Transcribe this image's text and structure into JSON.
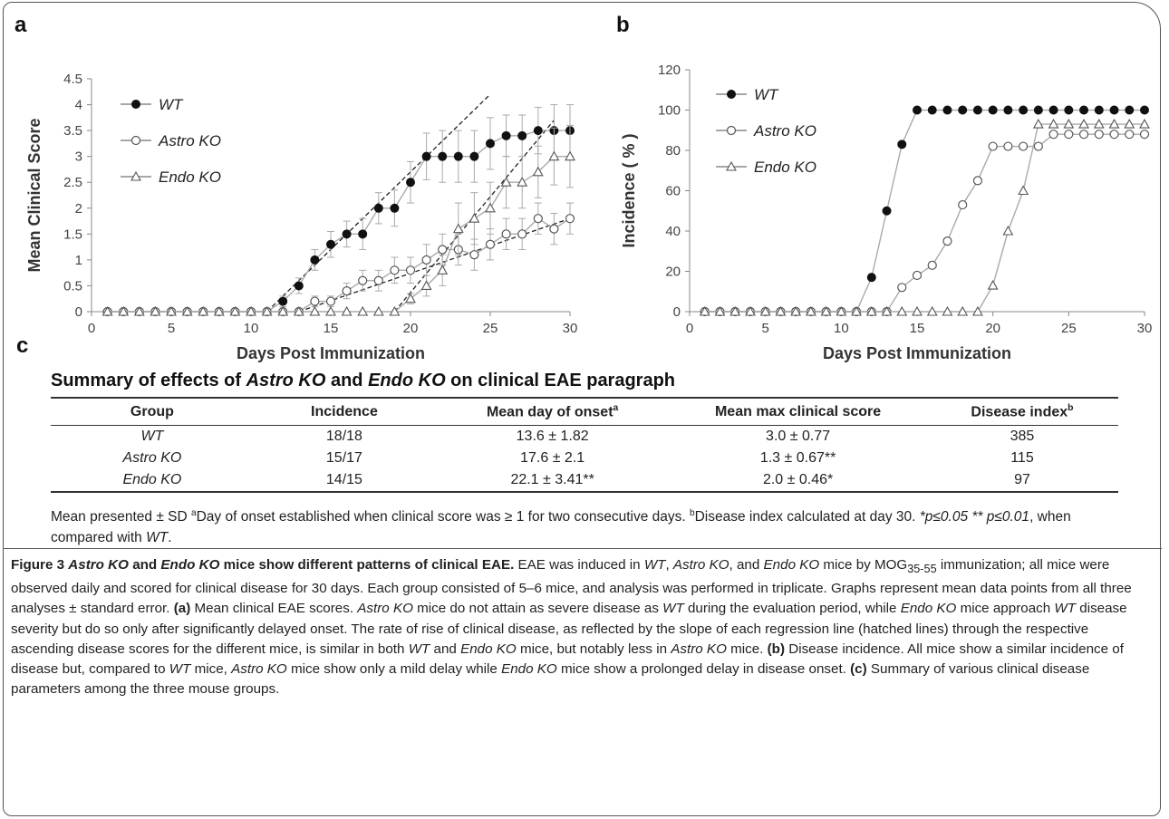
{
  "panel_labels": {
    "a": "a",
    "b": "b",
    "c": "c"
  },
  "legend": {
    "wt": "WT",
    "astro": "Astro KO",
    "endo": "Endo KO"
  },
  "chart_data": [
    {
      "type": "line",
      "panel": "a",
      "xlabel": "Days Post Immunization",
      "ylabel": "Mean Clinical Score",
      "xlim": [
        0,
        30
      ],
      "ylim": [
        0,
        4.5
      ],
      "xticks": [
        0,
        5,
        10,
        15,
        20,
        25,
        30
      ],
      "yticks": [
        0,
        0.5,
        1,
        1.5,
        2,
        2.5,
        3,
        3.5,
        4,
        4.5
      ],
      "ytick_labels": [
        "0",
        "0.5",
        "1",
        "1.5",
        "2",
        "2.5",
        "3",
        "3.5",
        "4",
        "4.5"
      ],
      "grid": false,
      "legend_position": "top-left",
      "series": [
        {
          "name": "WT",
          "marker": "filled-circle",
          "x": [
            1,
            2,
            3,
            4,
            5,
            6,
            7,
            8,
            9,
            10,
            11,
            12,
            13,
            14,
            15,
            16,
            17,
            18,
            19,
            20,
            21,
            22,
            23,
            24,
            25,
            26,
            27,
            28,
            29,
            30
          ],
          "y": [
            0,
            0,
            0,
            0,
            0,
            0,
            0,
            0,
            0,
            0,
            0,
            0.2,
            0.5,
            1.0,
            1.3,
            1.5,
            1.5,
            2.0,
            2.0,
            2.5,
            3.0,
            3.0,
            3.0,
            3.0,
            3.25,
            3.4,
            3.4,
            3.5,
            3.5,
            3.5
          ],
          "error": [
            0,
            0,
            0,
            0,
            0,
            0,
            0,
            0,
            0,
            0,
            0,
            0.1,
            0.15,
            0.2,
            0.25,
            0.25,
            0.3,
            0.3,
            0.35,
            0.4,
            0.45,
            0.5,
            0.5,
            0.5,
            0.5,
            0.4,
            0.4,
            0.45,
            0.5,
            0.5
          ]
        },
        {
          "name": "Astro KO",
          "marker": "open-circle",
          "x": [
            1,
            2,
            3,
            4,
            5,
            6,
            7,
            8,
            9,
            10,
            11,
            12,
            13,
            14,
            15,
            16,
            17,
            18,
            19,
            20,
            21,
            22,
            23,
            24,
            25,
            26,
            27,
            28,
            29,
            30
          ],
          "y": [
            0,
            0,
            0,
            0,
            0,
            0,
            0,
            0,
            0,
            0,
            0,
            0,
            0,
            0.2,
            0.2,
            0.4,
            0.6,
            0.6,
            0.8,
            0.8,
            1.0,
            1.2,
            1.2,
            1.1,
            1.3,
            1.5,
            1.5,
            1.8,
            1.6,
            1.8
          ],
          "error": [
            0,
            0,
            0,
            0,
            0,
            0,
            0,
            0,
            0,
            0,
            0,
            0,
            0,
            0.1,
            0.1,
            0.15,
            0.2,
            0.2,
            0.25,
            0.25,
            0.3,
            0.3,
            0.3,
            0.3,
            0.3,
            0.3,
            0.3,
            0.3,
            0.3,
            0.3
          ]
        },
        {
          "name": "Endo KO",
          "marker": "open-triangle",
          "x": [
            1,
            2,
            3,
            4,
            5,
            6,
            7,
            8,
            9,
            10,
            11,
            12,
            13,
            14,
            15,
            16,
            17,
            18,
            19,
            20,
            21,
            22,
            23,
            24,
            25,
            26,
            27,
            28,
            29,
            30
          ],
          "y": [
            0,
            0,
            0,
            0,
            0,
            0,
            0,
            0,
            0,
            0,
            0,
            0,
            0,
            0,
            0,
            0,
            0,
            0,
            0,
            0.25,
            0.5,
            0.8,
            1.6,
            1.8,
            2.0,
            2.5,
            2.5,
            2.7,
            3.0,
            3.0
          ],
          "error": [
            0,
            0,
            0,
            0,
            0,
            0,
            0,
            0,
            0,
            0,
            0,
            0,
            0,
            0,
            0,
            0,
            0,
            0,
            0,
            0.1,
            0.2,
            0.3,
            0.5,
            0.5,
            0.5,
            0.5,
            0.5,
            0.5,
            0.55,
            0.6
          ]
        }
      ],
      "regression_lines": [
        {
          "series": "WT",
          "x": [
            11,
            25
          ],
          "y": [
            0,
            4.2
          ]
        },
        {
          "series": "Astro KO",
          "x": [
            13,
            30
          ],
          "y": [
            0,
            1.8
          ]
        },
        {
          "series": "Endo KO",
          "x": [
            19,
            29
          ],
          "y": [
            0,
            3.7
          ]
        }
      ]
    },
    {
      "type": "line",
      "panel": "b",
      "xlabel": "Days Post Immunization",
      "ylabel": "Incidence ( % )",
      "xlim": [
        0,
        30
      ],
      "ylim": [
        0,
        120
      ],
      "xticks": [
        0,
        5,
        10,
        15,
        20,
        25,
        30
      ],
      "yticks": [
        0,
        20,
        40,
        60,
        80,
        100,
        120
      ],
      "ytick_labels": [
        "0",
        "20",
        "40",
        "60",
        "80",
        "100",
        "120"
      ],
      "grid": false,
      "legend_position": "top-left",
      "series": [
        {
          "name": "WT",
          "marker": "filled-circle",
          "x": [
            1,
            2,
            3,
            4,
            5,
            6,
            7,
            8,
            9,
            10,
            11,
            12,
            13,
            14,
            15,
            16,
            17,
            18,
            19,
            20,
            21,
            22,
            23,
            24,
            25,
            26,
            27,
            28,
            29,
            30
          ],
          "y": [
            0,
            0,
            0,
            0,
            0,
            0,
            0,
            0,
            0,
            0,
            0,
            17,
            50,
            83,
            100,
            100,
            100,
            100,
            100,
            100,
            100,
            100,
            100,
            100,
            100,
            100,
            100,
            100,
            100,
            100
          ]
        },
        {
          "name": "Astro KO",
          "marker": "open-circle",
          "x": [
            1,
            2,
            3,
            4,
            5,
            6,
            7,
            8,
            9,
            10,
            11,
            12,
            13,
            14,
            15,
            16,
            17,
            18,
            19,
            20,
            21,
            22,
            23,
            24,
            25,
            26,
            27,
            28,
            29,
            30
          ],
          "y": [
            0,
            0,
            0,
            0,
            0,
            0,
            0,
            0,
            0,
            0,
            0,
            0,
            0,
            12,
            18,
            23,
            35,
            53,
            65,
            82,
            82,
            82,
            82,
            88,
            88,
            88,
            88,
            88,
            88,
            88
          ]
        },
        {
          "name": "Endo KO",
          "marker": "open-triangle",
          "x": [
            1,
            2,
            3,
            4,
            5,
            6,
            7,
            8,
            9,
            10,
            11,
            12,
            13,
            14,
            15,
            16,
            17,
            18,
            19,
            20,
            21,
            22,
            23,
            24,
            25,
            26,
            27,
            28,
            29,
            30
          ],
          "y": [
            0,
            0,
            0,
            0,
            0,
            0,
            0,
            0,
            0,
            0,
            0,
            0,
            0,
            0,
            0,
            0,
            0,
            0,
            0,
            13,
            40,
            60,
            93,
            93,
            93,
            93,
            93,
            93,
            93,
            93
          ]
        }
      ]
    }
  ],
  "table": {
    "title_pre": "Summary of effects of ",
    "title_astro": "Astro KO",
    "title_mid": " and ",
    "title_endo": "Endo KO",
    "title_post": " on clinical EAE paragraph",
    "headers": {
      "group": "Group",
      "incidence": "Incidence",
      "onset": "Mean day of onset",
      "onset_sup": "a",
      "max": "Mean max clinical score",
      "index": "Disease index",
      "index_sup": "b"
    },
    "rows": [
      {
        "group": "WT",
        "incidence": "18/18",
        "onset": "13.6 ± 1.82",
        "max": "3.0 ± 0.77",
        "index": "385"
      },
      {
        "group": "Astro KO",
        "incidence": "15/17",
        "onset": "17.6 ± 2.1",
        "max": "1.3 ± 0.67**",
        "index": "115"
      },
      {
        "group": "Endo KO",
        "incidence": "14/15",
        "onset": "22.1 ± 3.41**",
        "max": "2.0 ± 0.46*",
        "index": "97"
      }
    ]
  },
  "table_note": {
    "part1": "Mean presented ± SD ",
    "sup_a": "a",
    "part2": "Day of onset established when clinical score  was ≥ 1 for two consecutive days. ",
    "sup_b": "b",
    "part3": "Disease index calculated at day 30. ",
    "sig": "*p≤0.05 ** p≤0.01",
    "part4": ", when compared with ",
    "wt": "WT",
    "part5": "."
  },
  "caption": {
    "fig": "Figure 3 ",
    "title_astro": "Astro KO",
    "title_and": " and ",
    "title_endo": "Endo KO",
    "title_rest": " mice show different patterns of clinical EAE.",
    "s1": " EAE was induced in ",
    "wt": "WT",
    "comma1": ", ",
    "astro": "Astro KO",
    "s2": ", and ",
    "endo": "Endo KO",
    "s3": " mice by MOG",
    "mog_sub": "35-55",
    "s4": " immunization; all mice were observed daily and scored for clinical disease for 30 days. Each group consisted of 5–6 mice, and analysis was performed in triplicate. Graphs represent mean data points from all three analyses ± standard error. ",
    "a_lbl": "(a)",
    "a_txt1": " Mean clinical EAE scores. ",
    "a_astro": "Astro KO",
    "a_txt2": " mice do not attain as severe disease as ",
    "a_wt": "WT",
    "a_txt3": " during the evaluation period, while ",
    "a_endo": "Endo KO",
    "a_txt4": " mice approach ",
    "a_wt2": "WT",
    "a_txt5": " disease severity but do so only after significantly delayed onset. The rate of rise of clinical disease, as reflected by the slope of each regression line (hatched lines) through the respective ascending disease scores for the different mice, is similar in both ",
    "a_wt3": "WT",
    "a_txt6": " and ",
    "a_endo2": "Endo KO",
    "a_txt7": " mice, but notably less in ",
    "a_astro2": "Astro KO",
    "a_txt8": " mice. ",
    "b_lbl": "(b)",
    "b_txt1": " Disease incidence. All mice show a similar incidence of disease but, compared to ",
    "b_wt": "WT",
    "b_txt2": " mice, ",
    "b_astro": "Astro KO",
    "b_txt3": " mice show only a mild delay while ",
    "b_endo": "Endo KO",
    "b_txt4": " mice show a prolonged delay in disease onset. ",
    "c_lbl": "(c)",
    "c_txt": " Summary of various clinical disease parameters among the three mouse groups."
  }
}
